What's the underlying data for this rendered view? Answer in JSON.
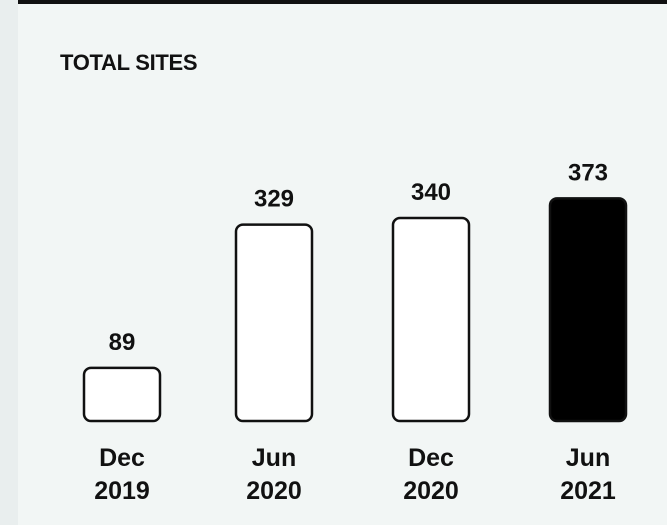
{
  "card": {
    "title": "TOTAL SITES"
  },
  "colors": {
    "highlight_fill": "#000000",
    "bar_stroke": "#111111",
    "bar_fill": "#ffffff",
    "text": "#111111"
  },
  "chart_data": {
    "type": "bar",
    "title": "TOTAL SITES",
    "categories": [
      [
        "Dec",
        "2019"
      ],
      [
        "Jun",
        "2020"
      ],
      [
        "Dec",
        "2020"
      ],
      [
        "Jun",
        "2021"
      ]
    ],
    "values": [
      89,
      329,
      340,
      373
    ],
    "data_labels": [
      "89",
      "329",
      "340",
      "373"
    ],
    "highlighted_index": 3,
    "grid": false,
    "legend": "none"
  }
}
